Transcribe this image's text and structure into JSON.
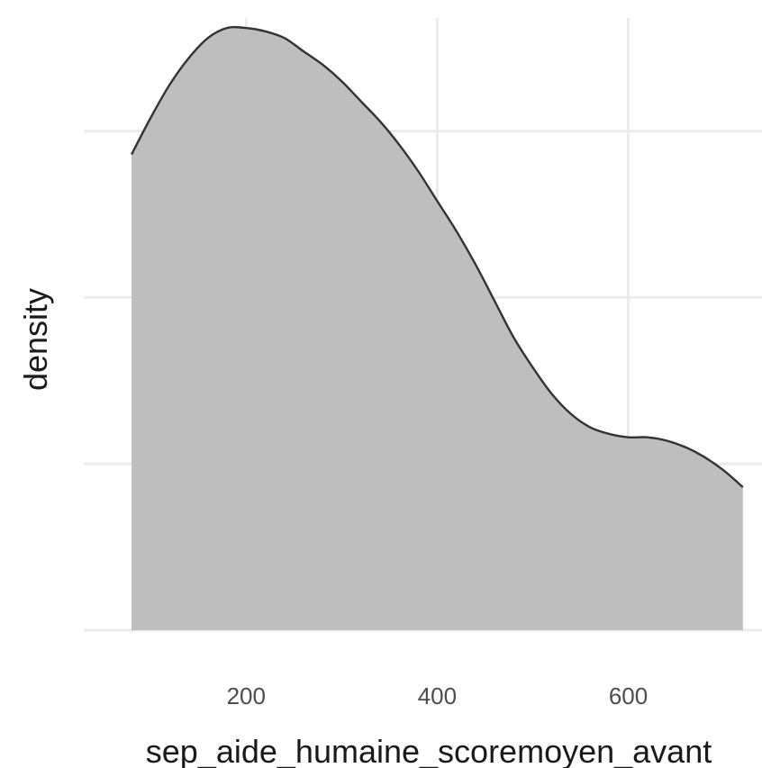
{
  "chart_data": {
    "type": "area",
    "title": "",
    "xlabel": "sep_aide_humaine_scoremoyen_avant",
    "ylabel": "density",
    "xlim": [
      30,
      740
    ],
    "ylim": [
      0,
      1.84
    ],
    "x_ticks": [
      200,
      400,
      600
    ],
    "y_gridlines": [
      0,
      0.5,
      1.0,
      1.5
    ],
    "y_tick_labels_shown": false,
    "grid": true,
    "legend": "none",
    "fill_color": "#bebebe",
    "line_color": "#333333",
    "grid_color": "#ebebeb",
    "series": [
      {
        "x": [
          80,
          100,
          120,
          140,
          160,
          180,
          200,
          220,
          240,
          260,
          280,
          300,
          320,
          340,
          360,
          380,
          400,
          420,
          440,
          460,
          480,
          500,
          520,
          540,
          560,
          580,
          600,
          620,
          640,
          660,
          680,
          700,
          720
        ],
        "values": [
          1.43,
          1.54,
          1.64,
          1.72,
          1.78,
          1.81,
          1.81,
          1.8,
          1.78,
          1.74,
          1.7,
          1.65,
          1.59,
          1.53,
          1.46,
          1.38,
          1.29,
          1.2,
          1.1,
          0.99,
          0.88,
          0.79,
          0.71,
          0.65,
          0.61,
          0.59,
          0.58,
          0.58,
          0.57,
          0.55,
          0.52,
          0.48,
          0.43
        ]
      }
    ]
  }
}
